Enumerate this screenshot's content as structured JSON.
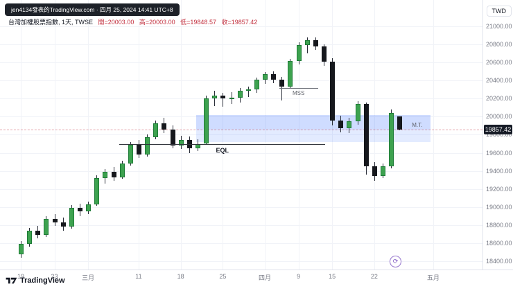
{
  "header": {
    "attribution": "jen4134發表的TradingView.com · 四月 25, 2024 14:41 UTC+8"
  },
  "legend": {
    "title": "台灣加權股票指數, 1天, TWSE",
    "open": "開=20003.00",
    "high": "高=20003.00",
    "low": "低=19848.57",
    "close": "收=19857.42"
  },
  "footer": {
    "brand": "TradingView"
  },
  "icons": {
    "refresh_circle": "⟳"
  },
  "colors": {
    "up_fill": "#3da24f",
    "up_border": "#1e7b37",
    "down_fill": "#16181d",
    "down_border": "#16181d",
    "wick": "#2a2e39",
    "zone_blue": "#2962ff",
    "legend_value_red": "#c22f3e",
    "badge_bg": "#161b26",
    "axis_text": "#787b86",
    "grid": "#f1f3f8"
  },
  "chart_data": {
    "type": "candlestick",
    "title": "台灣加權股票指數 (TWSE), 1天",
    "price_axis": {
      "currency": "TWD",
      "min": 18400,
      "max": 21000,
      "tick_step": 200,
      "ticks": [
        "21000.00",
        "20800.00",
        "20600.00",
        "20400.00",
        "20200.00",
        "20000.00",
        "19800.00",
        "19600.00",
        "19400.00",
        "19200.00",
        "19000.00",
        "18800.00",
        "18600.00",
        "18400.00"
      ],
      "last_price": "19857.42",
      "last_price_value": 19857.42
    },
    "time_axis": {
      "ticks": [
        {
          "label": "19",
          "i": 0
        },
        {
          "label": "23",
          "i": 4
        },
        {
          "label": "三月",
          "i": 8
        },
        {
          "label": "11",
          "i": 14
        },
        {
          "label": "18",
          "i": 19
        },
        {
          "label": "25",
          "i": 24
        },
        {
          "label": "四月",
          "i": 29
        },
        {
          "label": "9",
          "i": 33
        },
        {
          "label": "15",
          "i": 37
        },
        {
          "label": "22",
          "i": 42
        },
        {
          "label": "五月",
          "i": 49
        }
      ]
    },
    "ohlc_display": {
      "open": 20003.0,
      "high": 20003.0,
      "low": 19848.57,
      "close": 19857.42
    },
    "candles_ohlc": [
      [
        18480,
        18620,
        18440,
        18590
      ],
      [
        18590,
        18770,
        18560,
        18740
      ],
      [
        18740,
        18790,
        18650,
        18690
      ],
      [
        18690,
        18900,
        18670,
        18870
      ],
      [
        18870,
        18920,
        18790,
        18830
      ],
      [
        18830,
        18880,
        18740,
        18780
      ],
      [
        18780,
        19020,
        18760,
        18990
      ],
      [
        18990,
        19040,
        18900,
        18950
      ],
      [
        18950,
        19060,
        18920,
        19030
      ],
      [
        19030,
        19350,
        19010,
        19320
      ],
      [
        19320,
        19420,
        19260,
        19390
      ],
      [
        19390,
        19440,
        19290,
        19330
      ],
      [
        19330,
        19510,
        19310,
        19480
      ],
      [
        19480,
        19720,
        19460,
        19690
      ],
      [
        19690,
        19740,
        19540,
        19580
      ],
      [
        19580,
        19800,
        19560,
        19770
      ],
      [
        19770,
        19960,
        19750,
        19930
      ],
      [
        19930,
        19990,
        19820,
        19860
      ],
      [
        19860,
        19900,
        19650,
        19680
      ],
      [
        19680,
        19790,
        19640,
        19740
      ],
      [
        19740,
        19780,
        19600,
        19650
      ],
      [
        19650,
        19750,
        19620,
        19700
      ],
      [
        19700,
        20230,
        19690,
        20200
      ],
      [
        20200,
        20290,
        20120,
        20230
      ],
      [
        20230,
        20260,
        20110,
        20200
      ],
      [
        20200,
        20270,
        20140,
        20210
      ],
      [
        20210,
        20320,
        20160,
        20290
      ],
      [
        20290,
        20330,
        20220,
        20300
      ],
      [
        20300,
        20430,
        20260,
        20410
      ],
      [
        20410,
        20490,
        20360,
        20470
      ],
      [
        20470,
        20500,
        20370,
        20410
      ],
      [
        20410,
        20440,
        20180,
        20330
      ],
      [
        20330,
        20640,
        20310,
        20620
      ],
      [
        20620,
        20820,
        20580,
        20790
      ],
      [
        20790,
        20880,
        20700,
        20850
      ],
      [
        20850,
        20880,
        20740,
        20780
      ],
      [
        20780,
        20800,
        20560,
        20610
      ],
      [
        20610,
        20650,
        19900,
        19960
      ],
      [
        19960,
        20010,
        19830,
        19870
      ],
      [
        19870,
        19990,
        19820,
        19950
      ],
      [
        19950,
        20170,
        19910,
        20140
      ],
      [
        20140,
        20160,
        19360,
        19450
      ],
      [
        19450,
        19500,
        19290,
        19340
      ],
      [
        19340,
        19480,
        19320,
        19450
      ],
      [
        19450,
        20080,
        19430,
        20040
      ],
      [
        20003,
        20003,
        19848.57,
        19857.42
      ]
    ],
    "annotations": {
      "mss": {
        "label": "MSS",
        "price": 20320,
        "index_start": 30.7,
        "index_end": 35.3
      },
      "eql": {
        "label": "EQL",
        "price": 19700,
        "index_start": 11.7,
        "index_end": 36.2
      },
      "zone": {
        "label": "M.T.",
        "price_top": 20020,
        "price_mid": 19860,
        "price_bottom": 19720,
        "index_start": 20.8,
        "index_end": 48.7
      }
    }
  }
}
